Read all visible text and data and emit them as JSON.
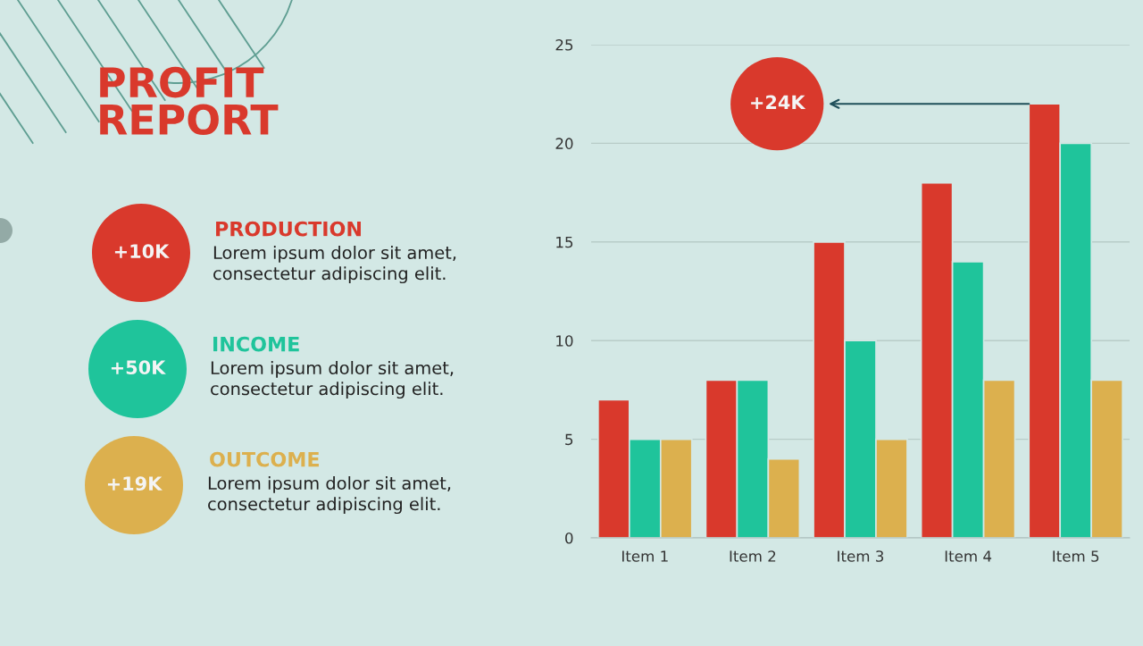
{
  "chart_data": {
    "type": "bar",
    "title": "PROFIT\nREPORT",
    "categories": [
      "Item 1",
      "Item 2",
      "Item 3",
      "Item 4",
      "Item 5"
    ],
    "series": [
      {
        "name": "PRODUCTION",
        "color": "#d9392c",
        "values": [
          7,
          8,
          15,
          18,
          22
        ]
      },
      {
        "name": "INCOME",
        "color": "#1fc49b",
        "values": [
          5,
          8,
          10,
          14,
          20
        ]
      },
      {
        "name": "OUTCOME",
        "color": "#dcb04e",
        "values": [
          5,
          4,
          5,
          8,
          8
        ]
      }
    ],
    "ylim": [
      0,
      25
    ],
    "yticks": [
      0,
      5,
      10,
      15,
      20,
      25
    ],
    "grid": "y",
    "legend": "left",
    "annotations": [
      "+10K",
      "Lorem ipsum dolor sit amet,\nconsectetur adipiscing elit.",
      "+50K",
      "Lorem ipsum dolor sit amet,\nconsectetur adipiscing elit.",
      "+19K",
      "Lorem ipsum dolor sit amet,\nconsectetur adipiscing elit.",
      "+24K"
    ]
  }
}
